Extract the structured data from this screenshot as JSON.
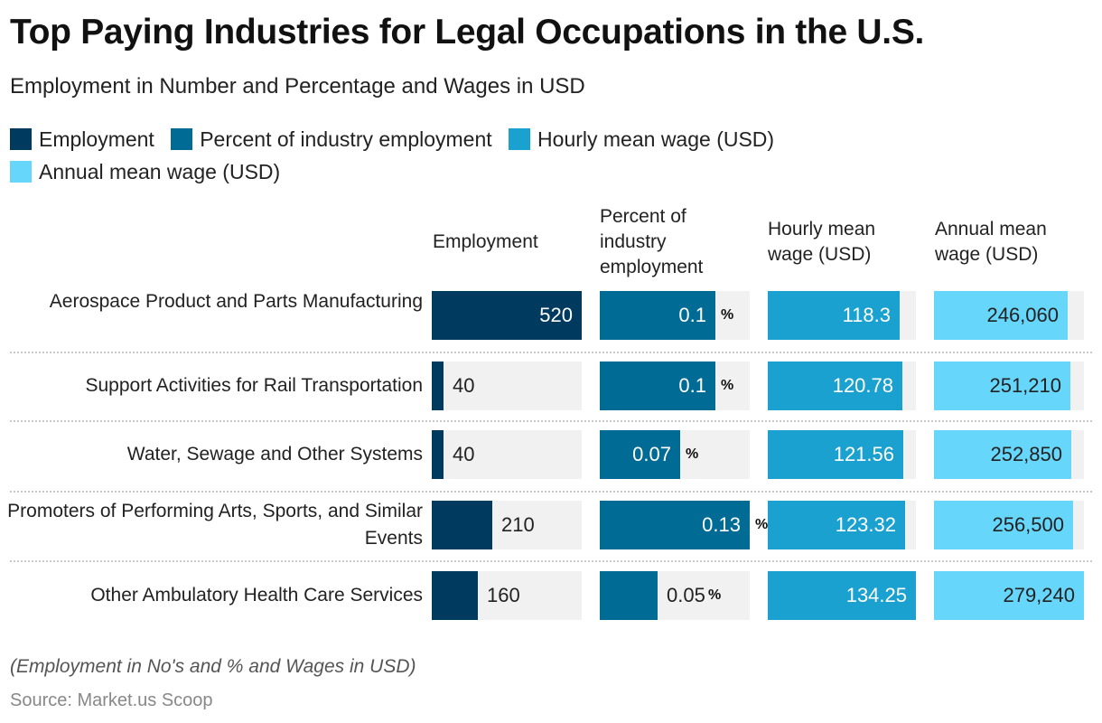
{
  "title": "Top Paying Industries for Legal Occupations in the U.S.",
  "subtitle": "Employment in Number and Percentage and Wages in USD",
  "note": "(Employment in No's and % and Wages in USD)",
  "source": "Source: Market.us Scoop",
  "colors": {
    "employment": "#003a5f",
    "percent": "#006c96",
    "hourly": "#1ba1cf",
    "annual": "#66d6fb",
    "track": "#f1f1f1"
  },
  "chart_data": {
    "type": "table",
    "title": "Top Paying Industries for Legal Occupations in the U.S.",
    "subtitle": "Employment in Number and Percentage and Wages in USD",
    "legend_position": "top-left",
    "columns": [
      {
        "key": "employment",
        "label": "Employment",
        "legend": "Employment",
        "suffix": "",
        "max": 520
      },
      {
        "key": "percent",
        "label": "Percent of industry employment",
        "legend": "Percent of industry employment",
        "suffix": "%",
        "max": 0.13
      },
      {
        "key": "hourly",
        "label": "Hourly mean wage (USD)",
        "legend": "Hourly mean wage (USD)",
        "suffix": "",
        "max": 134.25
      },
      {
        "key": "annual",
        "label": "Annual mean wage (USD)",
        "legend": "Annual mean wage (USD)",
        "suffix": "",
        "max": 279240
      }
    ],
    "categories": [
      "Aerospace Product and Parts Manufacturing",
      "Support Activities for Rail Transportation",
      "Water, Sewage and Other Systems",
      "Promoters of Performing Arts, Sports, and Similar Events",
      "Other Ambulatory Health Care Services"
    ],
    "series": [
      {
        "name": "Employment",
        "values": [
          520,
          40,
          40,
          210,
          160
        ],
        "labels": [
          "520",
          "40",
          "40",
          "210",
          "160"
        ]
      },
      {
        "name": "Percent of industry employment",
        "values": [
          0.1,
          0.1,
          0.07,
          0.13,
          0.05
        ],
        "labels": [
          "0.1",
          "0.1",
          "0.07",
          "0.13",
          "0.05"
        ]
      },
      {
        "name": "Hourly mean wage (USD)",
        "values": [
          118.3,
          120.78,
          121.56,
          123.32,
          134.25
        ],
        "labels": [
          "118.3",
          "120.78",
          "121.56",
          "123.32",
          "134.25"
        ]
      },
      {
        "name": "Annual mean wage (USD)",
        "values": [
          246060,
          251210,
          252850,
          256500,
          279240
        ],
        "labels": [
          "246,060",
          "251,210",
          "252,850",
          "256,500",
          "279,240"
        ]
      }
    ]
  }
}
